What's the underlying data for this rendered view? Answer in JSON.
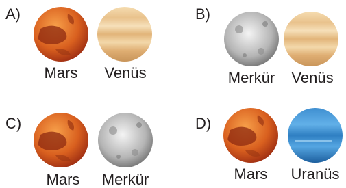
{
  "options": [
    {
      "letter": "A)",
      "planets": [
        {
          "name": "Mars"
        },
        {
          "name": "Venüs"
        }
      ]
    },
    {
      "letter": "B)",
      "planets": [
        {
          "name": "Merkür"
        },
        {
          "name": "Venüs"
        }
      ]
    },
    {
      "letter": "C)",
      "planets": [
        {
          "name": "Mars"
        },
        {
          "name": "Merkür"
        }
      ]
    },
    {
      "letter": "D)",
      "planets": [
        {
          "name": "Mars"
        },
        {
          "name": "Uranüs"
        }
      ]
    }
  ]
}
